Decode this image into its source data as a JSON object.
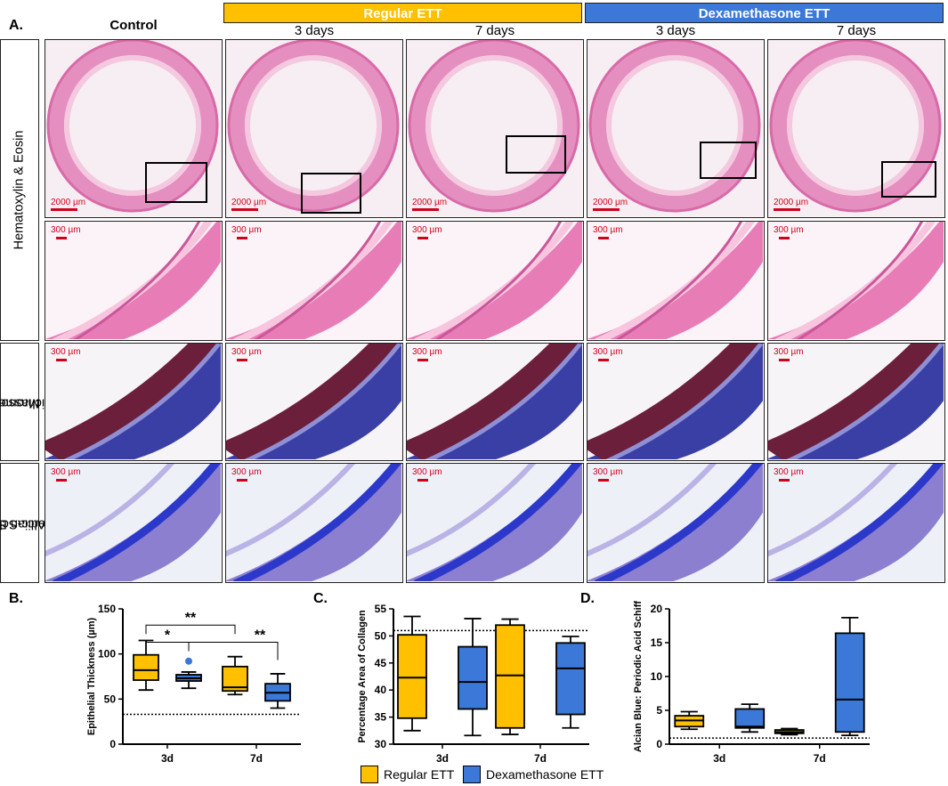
{
  "panel_labels": {
    "a": "A.",
    "b": "B.",
    "c": "C.",
    "d": "D."
  },
  "headers": {
    "control": "Control",
    "regular": "Regular ETT",
    "dexamethasone": "Dexamethasone ETT",
    "days3": "3 days",
    "days7": "7 days"
  },
  "rows": {
    "he": "Hematoxylin & Eosin",
    "masson_line1": "Masson's",
    "masson_line2": "Trichrome",
    "ab_line1": "Alcian Blue/",
    "ab_line2": "Periodic-Schiff"
  },
  "scale_bars": {
    "low": "2000 µm",
    "high": "300 µm"
  },
  "colors": {
    "regular": "#FFC000",
    "dexamethasone": "#3B78D8",
    "scale": "#d0021b"
  },
  "legend": {
    "regular": "Regular ETT",
    "dexamethasone": "Dexamethasone ETT"
  },
  "significance": {
    "b_top": "**",
    "b_star": "*",
    "b_lower": "**"
  },
  "chart_data": [
    {
      "id": "B",
      "type": "box",
      "ylabel": "Epithelial Thickness (µm)",
      "xlabel": "",
      "categories": [
        "3d",
        "7d"
      ],
      "ylim": [
        0,
        150
      ],
      "yticks": [
        0,
        50,
        100,
        150
      ],
      "reference_line": 33,
      "series": [
        {
          "name": "Regular ETT",
          "boxes": [
            {
              "category": "3d",
              "min": 60,
              "q1": 71,
              "median": 82,
              "q3": 99,
              "max": 115
            },
            {
              "category": "7d",
              "min": 55,
              "q1": 59,
              "median": 63,
              "q3": 86,
              "max": 97
            }
          ]
        },
        {
          "name": "Dexamethasone ETT",
          "boxes": [
            {
              "category": "3d",
              "min": 62,
              "q1": 70,
              "median": 73,
              "q3": 77,
              "max": 80,
              "outliers": [
                92
              ]
            },
            {
              "category": "7d",
              "min": 40,
              "q1": 48,
              "median": 57,
              "q3": 67,
              "max": 78
            }
          ]
        }
      ]
    },
    {
      "id": "C",
      "type": "box",
      "ylabel": "Percentage Area of Collagen",
      "xlabel": "",
      "categories": [
        "3d",
        "7d"
      ],
      "ylim": [
        30,
        55
      ],
      "yticks": [
        30,
        35,
        40,
        45,
        50,
        55
      ],
      "reference_line": 51,
      "series": [
        {
          "name": "Regular ETT",
          "boxes": [
            {
              "category": "3d",
              "min": 32.5,
              "q1": 34.8,
              "median": 42.3,
              "q3": 50.2,
              "max": 53.6
            },
            {
              "category": "7d",
              "min": 31.8,
              "q1": 33,
              "median": 42.7,
              "q3": 52,
              "max": 53.1
            }
          ]
        },
        {
          "name": "Dexamethasone ETT",
          "boxes": [
            {
              "category": "3d",
              "min": 31.6,
              "q1": 36.5,
              "median": 41.5,
              "q3": 48,
              "max": 53.2
            },
            {
              "category": "7d",
              "min": 33,
              "q1": 35.5,
              "median": 44,
              "q3": 48.7,
              "max": 49.9
            }
          ]
        }
      ]
    },
    {
      "id": "D",
      "type": "box",
      "ylabel": "Alcian Blue: Periodic Acid Schiff",
      "xlabel": "",
      "categories": [
        "3d",
        "7d"
      ],
      "ylim": [
        0,
        20
      ],
      "yticks": [
        0,
        5,
        10,
        15,
        20
      ],
      "reference_line": 0.9,
      "series": [
        {
          "name": "Regular ETT",
          "boxes": [
            {
              "category": "3d",
              "min": 2.2,
              "q1": 2.6,
              "median": 3.5,
              "q3": 4.2,
              "max": 4.8
            },
            {
              "category": "7d",
              "min": 1.4,
              "q1": 1.6,
              "median": 1.8,
              "q3": 2.1,
              "max": 2.3
            }
          ]
        },
        {
          "name": "Dexamethasone ETT",
          "boxes": [
            {
              "category": "3d",
              "min": 1.8,
              "q1": 2.4,
              "median": 2.6,
              "q3": 5.2,
              "max": 5.9
            },
            {
              "category": "7d",
              "min": 1.3,
              "q1": 1.8,
              "median": 6.6,
              "q3": 16.4,
              "max": 18.7
            }
          ]
        }
      ]
    }
  ]
}
